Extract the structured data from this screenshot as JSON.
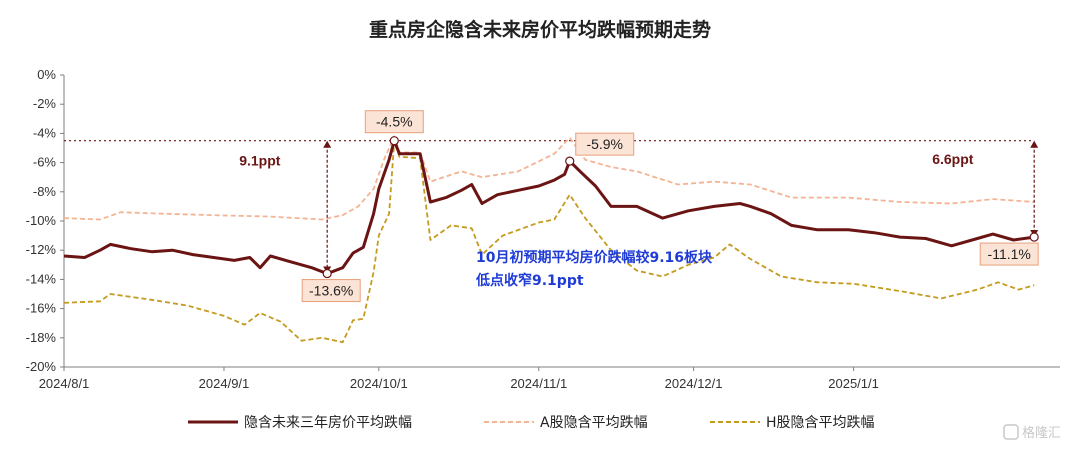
{
  "chart_data": {
    "type": "line",
    "title": "重点房企隐含未来房价平均跌幅预期走势",
    "ylim": [
      -20,
      0
    ],
    "y_ticks": [
      "0%",
      "-2%",
      "-4%",
      "-6%",
      "-8%",
      "-10%",
      "-12%",
      "-14%",
      "-16%",
      "-18%",
      "-20%"
    ],
    "y_tick_values": [
      0,
      -2,
      -4,
      -6,
      -8,
      -10,
      -12,
      -14,
      -16,
      -18,
      -20
    ],
    "x_range": [
      "2024-08-01",
      "2025-02-10"
    ],
    "x_ticks": [
      "2024/8/1",
      "2024/9/1",
      "2024/10/1",
      "2024/11/1",
      "2024/12/1",
      "2025/1/1"
    ],
    "x_tick_dates": [
      "2024-08-01",
      "2024-09-01",
      "2024-10-01",
      "2024-11-01",
      "2024-12-01",
      "2025-01-01"
    ],
    "grid": false,
    "legend_position": "bottom",
    "series": [
      {
        "name": "隐含未来三年房价平均跌幅",
        "color": "#6b1414",
        "style": "solid",
        "points": [
          [
            "2024-08-01",
            -12.4
          ],
          [
            "2024-08-05",
            -12.5
          ],
          [
            "2024-08-08",
            -12.0
          ],
          [
            "2024-08-10",
            -11.6
          ],
          [
            "2024-08-14",
            -11.9
          ],
          [
            "2024-08-18",
            -12.1
          ],
          [
            "2024-08-22",
            -12.0
          ],
          [
            "2024-08-26",
            -12.3
          ],
          [
            "2024-08-30",
            -12.5
          ],
          [
            "2024-09-03",
            -12.7
          ],
          [
            "2024-09-06",
            -12.5
          ],
          [
            "2024-09-08",
            -13.2
          ],
          [
            "2024-09-10",
            -12.4
          ],
          [
            "2024-09-14",
            -12.8
          ],
          [
            "2024-09-18",
            -13.2
          ],
          [
            "2024-09-21",
            -13.6
          ],
          [
            "2024-09-24",
            -13.2
          ],
          [
            "2024-09-26",
            -12.2
          ],
          [
            "2024-09-28",
            -11.8
          ],
          [
            "2024-09-30",
            -9.5
          ],
          [
            "2024-10-01",
            -7.8
          ],
          [
            "2024-10-03",
            -5.8
          ],
          [
            "2024-10-04",
            -4.5
          ],
          [
            "2024-10-05",
            -5.4
          ],
          [
            "2024-10-09",
            -5.4
          ],
          [
            "2024-10-11",
            -8.7
          ],
          [
            "2024-10-14",
            -8.4
          ],
          [
            "2024-10-17",
            -7.9
          ],
          [
            "2024-10-19",
            -7.5
          ],
          [
            "2024-10-21",
            -8.8
          ],
          [
            "2024-10-24",
            -8.2
          ],
          [
            "2024-10-28",
            -7.9
          ],
          [
            "2024-11-01",
            -7.6
          ],
          [
            "2024-11-04",
            -7.2
          ],
          [
            "2024-11-06",
            -6.8
          ],
          [
            "2024-11-07",
            -5.9
          ],
          [
            "2024-11-09",
            -6.6
          ],
          [
            "2024-11-12",
            -7.6
          ],
          [
            "2024-11-15",
            -9.0
          ],
          [
            "2024-11-20",
            -9.0
          ],
          [
            "2024-11-25",
            -9.8
          ],
          [
            "2024-11-30",
            -9.3
          ],
          [
            "2024-12-05",
            -9.0
          ],
          [
            "2024-12-10",
            -8.8
          ],
          [
            "2024-12-12",
            -9.0
          ],
          [
            "2024-12-16",
            -9.5
          ],
          [
            "2024-12-20",
            -10.3
          ],
          [
            "2024-12-25",
            -10.6
          ],
          [
            "2024-12-31",
            -10.6
          ],
          [
            "2025-01-05",
            -10.8
          ],
          [
            "2025-01-10",
            -11.1
          ],
          [
            "2025-01-15",
            -11.2
          ],
          [
            "2025-01-20",
            -11.7
          ],
          [
            "2025-01-25",
            -11.2
          ],
          [
            "2025-01-28",
            -10.9
          ],
          [
            "2025-02-01",
            -11.3
          ],
          [
            "2025-02-05",
            -11.1
          ]
        ]
      },
      {
        "name": "A股隐含平均跌幅",
        "color": "#f4b393",
        "style": "dashed",
        "points": [
          [
            "2024-08-01",
            -9.8
          ],
          [
            "2024-08-08",
            -9.9
          ],
          [
            "2024-08-12",
            -9.4
          ],
          [
            "2024-08-20",
            -9.5
          ],
          [
            "2024-08-30",
            -9.6
          ],
          [
            "2024-09-10",
            -9.7
          ],
          [
            "2024-09-20",
            -9.9
          ],
          [
            "2024-09-24",
            -9.6
          ],
          [
            "2024-09-27",
            -9.0
          ],
          [
            "2024-09-30",
            -7.8
          ],
          [
            "2024-10-02",
            -5.8
          ],
          [
            "2024-10-04",
            -4.2
          ],
          [
            "2024-10-05",
            -5.3
          ],
          [
            "2024-10-09",
            -5.3
          ],
          [
            "2024-10-11",
            -7.3
          ],
          [
            "2024-10-17",
            -6.6
          ],
          [
            "2024-10-21",
            -7.0
          ],
          [
            "2024-10-28",
            -6.6
          ],
          [
            "2024-11-04",
            -5.4
          ],
          [
            "2024-11-07",
            -4.3
          ],
          [
            "2024-11-10",
            -5.8
          ],
          [
            "2024-11-15",
            -6.3
          ],
          [
            "2024-11-20",
            -6.6
          ],
          [
            "2024-11-28",
            -7.5
          ],
          [
            "2024-12-05",
            -7.3
          ],
          [
            "2024-12-12",
            -7.5
          ],
          [
            "2024-12-20",
            -8.4
          ],
          [
            "2024-12-31",
            -8.4
          ],
          [
            "2025-01-10",
            -8.7
          ],
          [
            "2025-01-20",
            -8.8
          ],
          [
            "2025-01-28",
            -8.5
          ],
          [
            "2025-02-05",
            -8.7
          ]
        ]
      },
      {
        "name": "H股隐含平均跌幅",
        "color": "#c49a1f",
        "style": "dashed",
        "points": [
          [
            "2024-08-01",
            -15.6
          ],
          [
            "2024-08-08",
            -15.5
          ],
          [
            "2024-08-10",
            -15.0
          ],
          [
            "2024-08-18",
            -15.4
          ],
          [
            "2024-08-25",
            -15.8
          ],
          [
            "2024-09-01",
            -16.5
          ],
          [
            "2024-09-05",
            -17.1
          ],
          [
            "2024-09-08",
            -16.3
          ],
          [
            "2024-09-12",
            -16.9
          ],
          [
            "2024-09-16",
            -18.2
          ],
          [
            "2024-09-20",
            -18.0
          ],
          [
            "2024-09-24",
            -18.3
          ],
          [
            "2024-09-26",
            -16.8
          ],
          [
            "2024-09-28",
            -16.7
          ],
          [
            "2024-09-30",
            -13.5
          ],
          [
            "2024-10-01",
            -11.0
          ],
          [
            "2024-10-03",
            -9.5
          ],
          [
            "2024-10-04",
            -4.5
          ],
          [
            "2024-10-05",
            -5.6
          ],
          [
            "2024-10-09",
            -5.7
          ],
          [
            "2024-10-11",
            -11.3
          ],
          [
            "2024-10-15",
            -10.3
          ],
          [
            "2024-10-19",
            -10.5
          ],
          [
            "2024-10-21",
            -12.3
          ],
          [
            "2024-10-25",
            -11.0
          ],
          [
            "2024-11-01",
            -10.1
          ],
          [
            "2024-11-04",
            -9.9
          ],
          [
            "2024-11-07",
            -8.2
          ],
          [
            "2024-11-10",
            -9.8
          ],
          [
            "2024-11-15",
            -12.0
          ],
          [
            "2024-11-20",
            -13.4
          ],
          [
            "2024-11-25",
            -13.8
          ],
          [
            "2024-11-30",
            -13.0
          ],
          [
            "2024-12-05",
            -12.5
          ],
          [
            "2024-12-08",
            -11.6
          ],
          [
            "2024-12-12",
            -12.6
          ],
          [
            "2024-12-18",
            -13.8
          ],
          [
            "2024-12-25",
            -14.2
          ],
          [
            "2025-01-01",
            -14.3
          ],
          [
            "2025-01-10",
            -14.8
          ],
          [
            "2025-01-18",
            -15.3
          ],
          [
            "2025-01-25",
            -14.7
          ],
          [
            "2025-01-29",
            -14.2
          ],
          [
            "2025-02-02",
            -14.7
          ],
          [
            "2025-02-05",
            -14.4
          ]
        ]
      }
    ],
    "annotations": {
      "point_labels": [
        {
          "date": "2024-09-21",
          "value": -13.6,
          "text": "-13.6%"
        },
        {
          "date": "2024-10-04",
          "value": -4.5,
          "text": "-4.5%"
        },
        {
          "date": "2024-11-07",
          "value": -5.9,
          "text": "-5.9%"
        },
        {
          "date": "2025-02-05",
          "value": -11.1,
          "text": "-11.1%"
        }
      ],
      "reference_line_value": -4.5,
      "gaps": [
        {
          "text": "9.1ppt",
          "date": "2024-09-21",
          "from": -4.5,
          "to": -13.6
        },
        {
          "text": "6.6ppt",
          "date": "2025-02-05",
          "from": -4.5,
          "to": -11.1
        }
      ],
      "note_lines": [
        "10月初预期平均房价跌幅较9.16板块",
        "低点收窄9.1ppt"
      ]
    }
  },
  "watermark": "格隆汇"
}
